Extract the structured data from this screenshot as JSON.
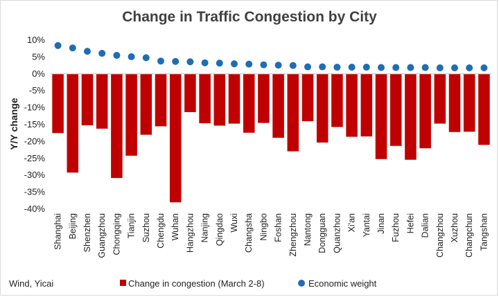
{
  "chart_data": {
    "type": "bar",
    "title": "Change in Traffic Congestion by City",
    "ylabel": "Y/Y change",
    "xlabel": "",
    "source": "Wind, Yicai",
    "ylim": [
      -40,
      10
    ],
    "yticks": [
      10,
      5,
      0,
      -5,
      -10,
      -15,
      -20,
      -25,
      -30,
      -35,
      -40
    ],
    "ytick_format": "percent",
    "grid": false,
    "legend_position": "bottom",
    "categories": [
      "Shanghai",
      "Beijing",
      "Shenzhen",
      "Guangzhou",
      "Chongqing",
      "Tianjin",
      "Suzhou",
      "Chengdu",
      "Wuhan",
      "Hangzhou",
      "Nanjing",
      "Qingdao",
      "Wuxi",
      "Changsha",
      "Ningbo",
      "Foshan",
      "Zhengzhou",
      "Nantong",
      "Dongguan",
      "Quanzhou",
      "Xi'an",
      "Yantai",
      "Jinan",
      "Fuzhou",
      "Hefei",
      "Dalian",
      "Changzhou",
      "Xuzhou",
      "Changchun",
      "Tangshan"
    ],
    "series": [
      {
        "name": "Change in congestion (March 2-8)",
        "type": "bar",
        "color": "#c00000",
        "values": [
          -17.5,
          -29.2,
          -15.2,
          -16.2,
          -30.8,
          -24.2,
          -18.0,
          -15.5,
          -38.0,
          -11.3,
          -14.6,
          -15.3,
          -14.7,
          -17.4,
          -14.5,
          -18.9,
          -22.9,
          -14.0,
          -20.3,
          -15.7,
          -18.6,
          -18.5,
          -25.2,
          -21.3,
          -25.4,
          -22.0,
          -14.7,
          -17.2,
          -17.1,
          -21.0
        ]
      },
      {
        "name": "Economic weight",
        "type": "scatter",
        "color": "#1f6db5",
        "values": [
          8.4,
          7.7,
          6.7,
          6.1,
          5.5,
          5.1,
          4.8,
          3.8,
          3.7,
          3.6,
          3.3,
          3.2,
          3.0,
          2.9,
          2.7,
          2.6,
          2.5,
          2.1,
          2.1,
          2.0,
          2.0,
          2.0,
          1.9,
          1.9,
          1.9,
          1.9,
          1.8,
          1.8,
          1.8,
          1.8
        ]
      }
    ]
  }
}
